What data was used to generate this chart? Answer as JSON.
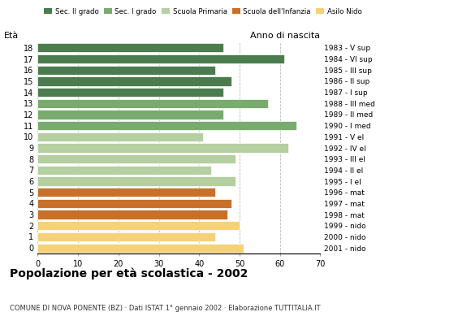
{
  "ages": [
    18,
    17,
    16,
    15,
    14,
    13,
    12,
    11,
    10,
    9,
    8,
    7,
    6,
    5,
    4,
    3,
    2,
    1,
    0
  ],
  "values": [
    46,
    61,
    44,
    48,
    46,
    57,
    46,
    64,
    41,
    62,
    49,
    43,
    49,
    44,
    48,
    47,
    50,
    44,
    51
  ],
  "anno_nascita": [
    "1983 - V sup",
    "1984 - VI sup",
    "1985 - III sup",
    "1986 - II sup",
    "1987 - I sup",
    "1988 - III med",
    "1989 - II med",
    "1990 - I med",
    "1991 - V el",
    "1992 - IV el",
    "1993 - III el",
    "1994 - II el",
    "1995 - I el",
    "1996 - mat",
    "1997 - mat",
    "1998 - mat",
    "1999 - nido",
    "2000 - nido",
    "2001 - nido"
  ],
  "colors": [
    "#4a7c4e",
    "#4a7c4e",
    "#4a7c4e",
    "#4a7c4e",
    "#4a7c4e",
    "#7aab6e",
    "#7aab6e",
    "#7aab6e",
    "#b5cfa0",
    "#b5cfa0",
    "#b5cfa0",
    "#b5cfa0",
    "#b5cfa0",
    "#c8702a",
    "#c8702a",
    "#c8702a",
    "#f5d27a",
    "#f5d27a",
    "#f5d27a"
  ],
  "legend_labels": [
    "Sec. II grado",
    "Sec. I grado",
    "Scuola Primaria",
    "Scuola dell'Infanzia",
    "Asilo Nido"
  ],
  "legend_colors": [
    "#4a7c4e",
    "#7aab6e",
    "#b5cfa0",
    "#c8702a",
    "#f5d27a"
  ],
  "title": "Popolazione per età scolastica - 2002",
  "subtitle": "COMUNE DI NOVA PONENTE (BZ) · Dati ISTAT 1° gennaio 2002 · Elaborazione TUTTITALIA.IT",
  "label_eta": "Età",
  "label_anno": "Anno di nascita",
  "xlim": [
    0,
    70
  ],
  "xticks": [
    0,
    10,
    20,
    30,
    40,
    50,
    60,
    70
  ],
  "grid_color": "#bbbbbb",
  "bar_height": 0.82
}
